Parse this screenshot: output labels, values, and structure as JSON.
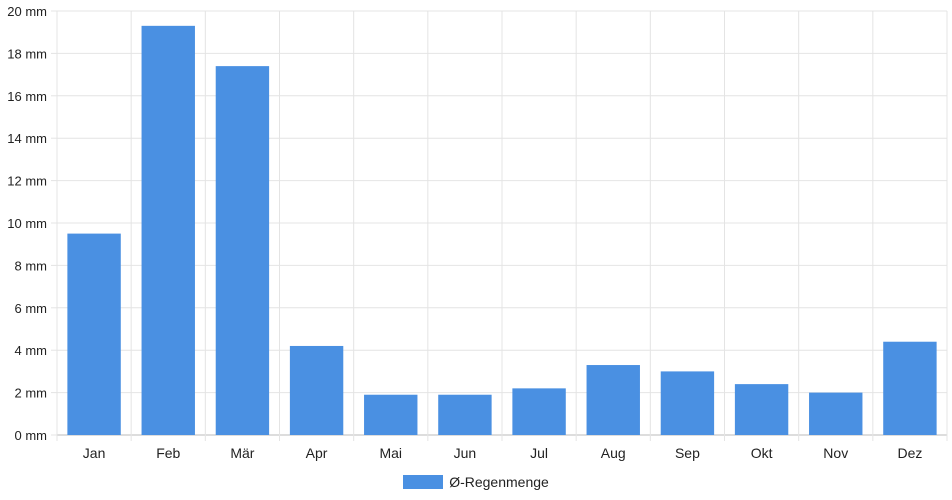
{
  "chart_data": {
    "type": "bar",
    "categories": [
      "Jan",
      "Feb",
      "Mär",
      "Apr",
      "Mai",
      "Jun",
      "Jul",
      "Aug",
      "Sep",
      "Okt",
      "Nov",
      "Dez"
    ],
    "series": [
      {
        "name": "Ø-Regenmenge",
        "values": [
          9.5,
          19.3,
          17.4,
          4.2,
          1.9,
          1.9,
          2.2,
          3.3,
          3.0,
          2.4,
          2.0,
          4.4
        ]
      }
    ],
    "unit": "mm",
    "ylim": [
      0,
      20
    ],
    "ytick_step": 2,
    "ytick_labels": [
      "0 mm",
      "2 mm",
      "4 mm",
      "6 mm",
      "8 mm",
      "10 mm",
      "12 mm",
      "14 mm",
      "16 mm",
      "18 mm",
      "20 mm"
    ],
    "grid": true,
    "legend_position": "bottom-center",
    "colors": {
      "bar": "#4a90e2",
      "grid": "#e4e4e4",
      "axis": "#bbbbbb"
    }
  }
}
